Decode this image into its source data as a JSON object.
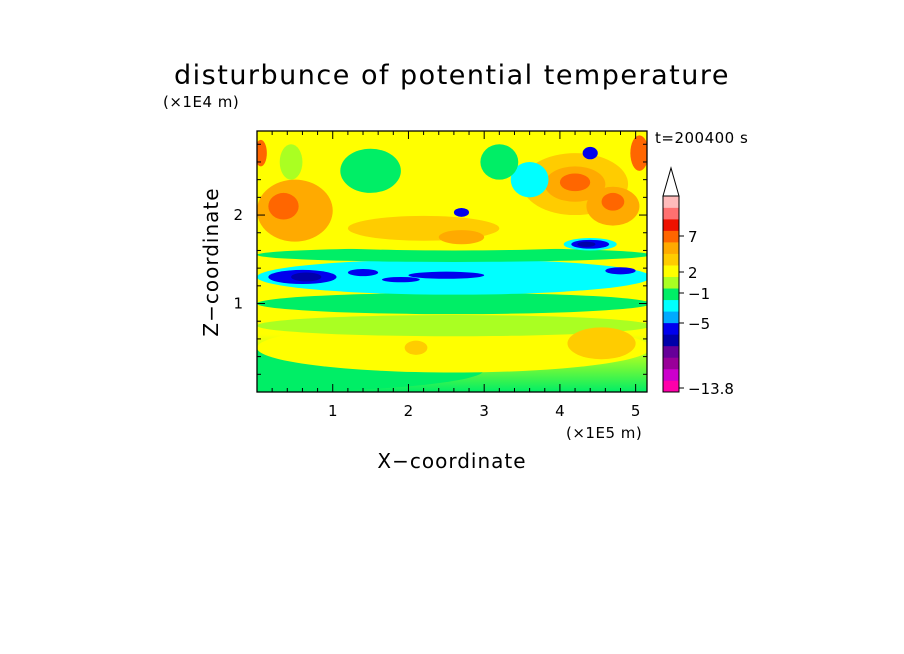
{
  "chart_data": {
    "type": "heatmap",
    "title": "disturbunce of potential temperature",
    "xlabel": "X−coordinate",
    "ylabel": "Z−coordinate",
    "x_unit": "(×1E5 m)",
    "y_unit": "(×1E4 m)",
    "time_label": "t=200400 s",
    "x_ticks": [
      "1",
      "2",
      "3",
      "4",
      "5"
    ],
    "y_ticks": [
      "1",
      "2"
    ],
    "xlim": [
      0,
      5.15
    ],
    "ylim": [
      0,
      2.95
    ],
    "colorbar": {
      "tick_labels": [
        "7",
        "2",
        "−1",
        "−5",
        "−13.8"
      ],
      "levels": [
        {
          "color": "#ff00aa"
        },
        {
          "color": "#cc00cc"
        },
        {
          "color": "#990099"
        },
        {
          "color": "#660099"
        },
        {
          "color": "#0000aa"
        },
        {
          "color": "#0000ee"
        },
        {
          "color": "#00aaff"
        },
        {
          "color": "#00ffff"
        },
        {
          "color": "#00ee66"
        },
        {
          "color": "#aaff22"
        },
        {
          "color": "#ffff00"
        },
        {
          "color": "#ffcc00"
        },
        {
          "color": "#ffaa00"
        },
        {
          "color": "#ff6600"
        },
        {
          "color": "#ee1100"
        },
        {
          "color": "#ff7070"
        },
        {
          "color": "#ffbbbb"
        }
      ]
    },
    "features": [
      {
        "x": 0.0,
        "y": 0.25,
        "rx": 3.0,
        "ry": 0.25,
        "color": "#00ee66"
      },
      {
        "x": 2.6,
        "y": 0.5,
        "rx": 2.6,
        "ry": 0.28,
        "color": "#ffff00"
      },
      {
        "x": 2.6,
        "y": 0.75,
        "rx": 2.6,
        "ry": 0.12,
        "color": "#aaff22"
      },
      {
        "x": 2.6,
        "y": 1.0,
        "rx": 2.6,
        "ry": 0.12,
        "color": "#00ee66"
      },
      {
        "x": 2.6,
        "y": 1.3,
        "rx": 2.6,
        "ry": 0.2,
        "color": "#00ffff"
      },
      {
        "x": 2.6,
        "y": 1.55,
        "rx": 2.6,
        "ry": 0.08,
        "color": "#00ee66"
      },
      {
        "x": 2.6,
        "y": 1.72,
        "rx": 2.6,
        "ry": 0.12,
        "color": "#ffff00"
      },
      {
        "x": 0.6,
        "y": 1.3,
        "rx": 0.45,
        "ry": 0.08,
        "color": "#0000ee"
      },
      {
        "x": 0.65,
        "y": 1.3,
        "rx": 0.2,
        "ry": 0.05,
        "color": "#0000aa"
      },
      {
        "x": 2.5,
        "y": 1.32,
        "rx": 0.5,
        "ry": 0.04,
        "color": "#0000ee"
      },
      {
        "x": 1.9,
        "y": 1.27,
        "rx": 0.25,
        "ry": 0.03,
        "color": "#0000ee"
      },
      {
        "x": 4.8,
        "y": 1.37,
        "rx": 0.2,
        "ry": 0.04,
        "color": "#0000ee"
      },
      {
        "x": 1.4,
        "y": 1.35,
        "rx": 0.2,
        "ry": 0.04,
        "color": "#0000ee"
      },
      {
        "x": 0.5,
        "y": 2.05,
        "rx": 0.5,
        "ry": 0.35,
        "color": "#ffaa00"
      },
      {
        "x": 0.35,
        "y": 2.1,
        "rx": 0.2,
        "ry": 0.15,
        "color": "#ff6600"
      },
      {
        "x": 2.2,
        "y": 1.85,
        "rx": 1.0,
        "ry": 0.14,
        "color": "#ffcc00"
      },
      {
        "x": 2.7,
        "y": 1.75,
        "rx": 0.3,
        "ry": 0.08,
        "color": "#ffaa00"
      },
      {
        "x": 4.2,
        "y": 2.35,
        "rx": 0.7,
        "ry": 0.35,
        "color": "#ffcc00"
      },
      {
        "x": 4.2,
        "y": 2.35,
        "rx": 0.4,
        "ry": 0.2,
        "color": "#ffaa00"
      },
      {
        "x": 4.2,
        "y": 2.37,
        "rx": 0.2,
        "ry": 0.1,
        "color": "#ff6600"
      },
      {
        "x": 4.7,
        "y": 2.1,
        "rx": 0.35,
        "ry": 0.22,
        "color": "#ffaa00"
      },
      {
        "x": 4.7,
        "y": 2.15,
        "rx": 0.15,
        "ry": 0.1,
        "color": "#ff6600"
      },
      {
        "x": 4.4,
        "y": 1.67,
        "rx": 0.35,
        "ry": 0.07,
        "color": "#00ffff"
      },
      {
        "x": 4.4,
        "y": 1.67,
        "rx": 0.25,
        "ry": 0.05,
        "color": "#0000ee"
      },
      {
        "x": 4.35,
        "y": 1.67,
        "rx": 0.12,
        "ry": 0.03,
        "color": "#0000aa"
      },
      {
        "x": 4.4,
        "y": 2.7,
        "rx": 0.1,
        "ry": 0.07,
        "color": "#0000ee"
      },
      {
        "x": 2.7,
        "y": 2.03,
        "rx": 0.1,
        "ry": 0.05,
        "color": "#0000ee"
      },
      {
        "x": 0.45,
        "y": 2.6,
        "rx": 0.15,
        "ry": 0.2,
        "color": "#aaff22"
      },
      {
        "x": 4.55,
        "y": 0.55,
        "rx": 0.45,
        "ry": 0.18,
        "color": "#ffcc00"
      },
      {
        "x": 2.1,
        "y": 0.5,
        "rx": 0.15,
        "ry": 0.08,
        "color": "#ffcc00"
      },
      {
        "x": 0.05,
        "y": 2.7,
        "rx": 0.08,
        "ry": 0.15,
        "color": "#ff6600"
      },
      {
        "x": 5.05,
        "y": 2.7,
        "rx": 0.12,
        "ry": 0.2,
        "color": "#ff6600"
      },
      {
        "x": 3.6,
        "y": 2.4,
        "rx": 0.25,
        "ry": 0.2,
        "color": "#00ffff"
      },
      {
        "x": 3.2,
        "y": 2.6,
        "rx": 0.25,
        "ry": 0.2,
        "color": "#00ee66"
      },
      {
        "x": 1.5,
        "y": 2.5,
        "rx": 0.4,
        "ry": 0.25,
        "color": "#00ee66"
      }
    ]
  }
}
